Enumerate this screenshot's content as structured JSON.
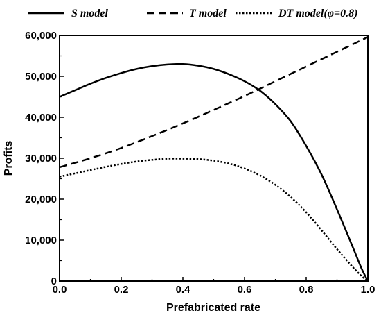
{
  "chart_data": {
    "type": "line",
    "xlabel": "Prefabricated rate",
    "ylabel": "Profits",
    "xlim": [
      0,
      1
    ],
    "ylim": [
      0,
      60000
    ],
    "x_ticks": [
      "0.0",
      "0.2",
      "0.4",
      "0.6",
      "0.8",
      "1.0"
    ],
    "y_ticks": [
      "0",
      "10,000",
      "20,000",
      "30,000",
      "40,000",
      "50,000",
      "60,000"
    ],
    "grid": false,
    "legend_position": "top",
    "series": [
      {
        "name": "S model",
        "style": "solid",
        "x": [
          0.0,
          0.05,
          0.1,
          0.15,
          0.2,
          0.25,
          0.3,
          0.35,
          0.4,
          0.45,
          0.5,
          0.55,
          0.6,
          0.65,
          0.7,
          0.75,
          0.8,
          0.85,
          0.9,
          0.95,
          0.98,
          1.0
        ],
        "y": [
          45000,
          46600,
          48200,
          49600,
          50800,
          51800,
          52500,
          52900,
          53000,
          52600,
          51800,
          50500,
          48800,
          46500,
          43200,
          39000,
          33000,
          26000,
          17500,
          8500,
          3000,
          0
        ]
      },
      {
        "name": "T model",
        "style": "dashed",
        "x": [
          0.0,
          0.1,
          0.2,
          0.3,
          0.4,
          0.5,
          0.6,
          0.7,
          0.8,
          0.9,
          1.0
        ],
        "y": [
          27800,
          30000,
          32500,
          35400,
          38500,
          41800,
          45200,
          48800,
          52400,
          56000,
          59600
        ]
      },
      {
        "name": "DT model(φ=0.8)",
        "style": "dotted",
        "x": [
          0.0,
          0.05,
          0.1,
          0.15,
          0.2,
          0.25,
          0.3,
          0.35,
          0.4,
          0.45,
          0.5,
          0.55,
          0.6,
          0.65,
          0.7,
          0.75,
          0.8,
          0.85,
          0.9,
          0.95,
          0.98,
          1.0
        ],
        "y": [
          25500,
          26300,
          27100,
          27900,
          28600,
          29200,
          29600,
          29900,
          29900,
          29800,
          29400,
          28700,
          27500,
          25800,
          23500,
          20500,
          16800,
          12400,
          7800,
          3500,
          1200,
          0
        ]
      }
    ]
  }
}
